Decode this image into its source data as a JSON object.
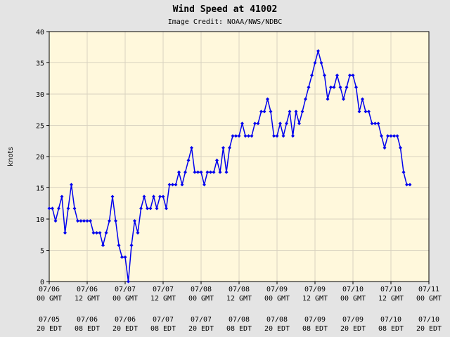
{
  "chart_data": {
    "type": "line",
    "title": "Wind Speed at 41002",
    "subtitle": "Image Credit: NOAA/NWS/NDBC",
    "y_label": "knots",
    "grid": true,
    "xlim": [
      "07/06 00:00",
      "07/11 00:00"
    ],
    "xticks": [
      {
        "value": "07/06 00:00",
        "label": "07/06\n00 GMT"
      },
      {
        "value": "07/06 12:00",
        "label": "07/06\n12 GMT"
      },
      {
        "value": "07/07 00:00",
        "label": "07/07\n00 GMT"
      },
      {
        "value": "07/07 12:00",
        "label": "07/07\n12 GMT"
      },
      {
        "value": "07/08 00:00",
        "label": "07/08\n00 GMT"
      },
      {
        "value": "07/08 12:00",
        "label": "07/08\n12 GMT"
      },
      {
        "value": "07/09 00:00",
        "label": "07/09\n00 GMT"
      },
      {
        "value": "07/09 12:00",
        "label": "07/09\n12 GMT"
      },
      {
        "value": "07/10 00:00",
        "label": "07/10\n00 GMT"
      },
      {
        "value": "07/10 12:00",
        "label": "07/10\n12 GMT"
      },
      {
        "value": "07/11 00:00",
        "label": "07/11\n00 GMT"
      }
    ],
    "xticks_local_labels": [
      "07/05\n20 EDT",
      "07/06\n08 EDT",
      "07/06\n20 EDT",
      "07/07\n08 EDT",
      "07/07\n20 EDT",
      "07/08\n08 EDT",
      "07/08\n20 EDT",
      "07/09\n08 EDT",
      "07/09\n20 EDT",
      "07/10\n08 EDT",
      "07/10\n20 EDT"
    ],
    "ylim": [
      0,
      40
    ],
    "yticks": [
      0,
      5,
      10,
      15,
      20,
      25,
      30,
      35,
      40
    ],
    "x": [
      "07/06 00:00",
      "07/06 01:00",
      "07/06 02:00",
      "07/06 03:00",
      "07/06 04:00",
      "07/06 05:00",
      "07/06 06:00",
      "07/06 07:00",
      "07/06 08:00",
      "07/06 09:00",
      "07/06 10:00",
      "07/06 11:00",
      "07/06 12:00",
      "07/06 13:00",
      "07/06 14:00",
      "07/06 15:00",
      "07/06 16:00",
      "07/06 17:00",
      "07/06 18:00",
      "07/06 19:00",
      "07/06 20:00",
      "07/06 21:00",
      "07/06 22:00",
      "07/06 23:00",
      "07/07 00:00",
      "07/07 01:00",
      "07/07 02:00",
      "07/07 03:00",
      "07/07 04:00",
      "07/07 05:00",
      "07/07 06:00",
      "07/07 07:00",
      "07/07 08:00",
      "07/07 09:00",
      "07/07 10:00",
      "07/07 11:00",
      "07/07 12:00",
      "07/07 13:00",
      "07/07 14:00",
      "07/07 15:00",
      "07/07 16:00",
      "07/07 17:00",
      "07/07 18:00",
      "07/07 19:00",
      "07/07 20:00",
      "07/07 21:00",
      "07/07 22:00",
      "07/07 23:00",
      "07/08 00:00",
      "07/08 01:00",
      "07/08 02:00",
      "07/08 03:00",
      "07/08 04:00",
      "07/08 05:00",
      "07/08 06:00",
      "07/08 07:00",
      "07/08 08:00",
      "07/08 09:00",
      "07/08 10:00",
      "07/08 11:00",
      "07/08 12:00",
      "07/08 13:00",
      "07/08 14:00",
      "07/08 15:00",
      "07/08 16:00",
      "07/08 17:00",
      "07/08 18:00",
      "07/08 19:00",
      "07/08 20:00",
      "07/08 21:00",
      "07/08 22:00",
      "07/08 23:00",
      "07/09 00:00",
      "07/09 01:00",
      "07/09 02:00",
      "07/09 03:00",
      "07/09 04:00",
      "07/09 05:00",
      "07/09 06:00",
      "07/09 07:00",
      "07/09 08:00",
      "07/09 09:00",
      "07/09 10:00",
      "07/09 11:00",
      "07/09 12:00",
      "07/09 13:00",
      "07/09 14:00",
      "07/09 15:00",
      "07/09 16:00",
      "07/09 17:00",
      "07/09 18:00",
      "07/09 19:00",
      "07/09 20:00",
      "07/09 21:00",
      "07/09 22:00",
      "07/09 23:00",
      "07/10 00:00",
      "07/10 01:00",
      "07/10 02:00",
      "07/10 03:00",
      "07/10 04:00",
      "07/10 05:00",
      "07/10 06:00",
      "07/10 07:00",
      "07/10 08:00",
      "07/10 09:00",
      "07/10 10:00",
      "07/10 11:00",
      "07/10 12:00",
      "07/10 13:00",
      "07/10 14:00",
      "07/10 15:00",
      "07/10 16:00",
      "07/10 17:00",
      "07/10 18:00"
    ],
    "series": [
      {
        "name": "Wind Speed",
        "color": "#0000ee",
        "values": [
          11.7,
          11.7,
          9.7,
          11.7,
          13.6,
          7.8,
          11.7,
          15.5,
          11.7,
          9.7,
          9.7,
          9.7,
          9.7,
          9.7,
          7.8,
          7.8,
          7.8,
          5.8,
          7.8,
          9.7,
          13.6,
          9.7,
          5.8,
          3.9,
          3.9,
          0,
          5.8,
          9.7,
          7.8,
          11.7,
          13.6,
          11.7,
          11.7,
          13.6,
          11.7,
          13.6,
          13.6,
          11.7,
          15.5,
          15.5,
          15.5,
          17.5,
          15.5,
          17.5,
          19.4,
          21.4,
          17.5,
          17.5,
          17.5,
          15.5,
          17.5,
          17.5,
          17.5,
          19.4,
          17.5,
          21.4,
          17.5,
          21.4,
          23.3,
          23.3,
          23.3,
          25.3,
          23.3,
          23.3,
          23.3,
          25.3,
          25.3,
          27.2,
          27.2,
          29.2,
          27.2,
          23.3,
          23.3,
          25.3,
          23.3,
          25.3,
          27.2,
          23.3,
          27.2,
          25.3,
          27.2,
          29.2,
          31.1,
          33.0,
          35.0,
          36.9,
          35.0,
          33.0,
          29.2,
          31.1,
          31.1,
          33.0,
          31.1,
          29.2,
          31.1,
          33.0,
          33.0,
          31.1,
          27.2,
          29.2,
          27.2,
          27.2,
          25.3,
          25.3,
          25.3,
          23.3,
          21.4,
          23.3,
          23.3,
          23.3,
          23.3,
          21.4,
          17.5,
          15.5,
          15.5
        ]
      }
    ]
  }
}
